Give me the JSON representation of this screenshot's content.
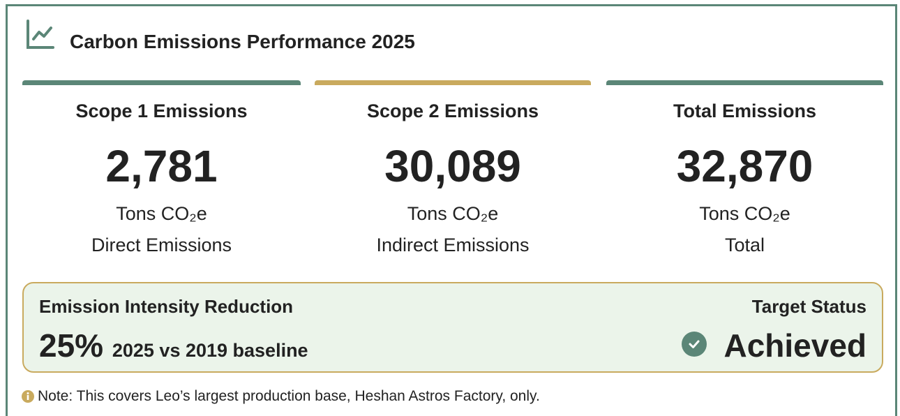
{
  "header": {
    "title": "Carbon Emissions Performance 2025"
  },
  "cards": [
    {
      "label": "Scope 1 Emissions",
      "value": "2,781",
      "unit": "Tons CO₂e",
      "description": "Direct Emissions",
      "color": "#5b8677"
    },
    {
      "label": "Scope 2 Emissions",
      "value": "30,089",
      "unit": "Tons CO₂e",
      "description": "Indirect Emissions",
      "color": "#c9aa5e"
    },
    {
      "label": "Total Emissions",
      "value": "32,870",
      "unit": "Tons CO₂e",
      "description": "Total",
      "color": "#5b8677"
    }
  ],
  "banner": {
    "title": "Emission Intensity Reduction",
    "value": "25%",
    "comparison": "2025 vs 2019 baseline",
    "status_label": "Target Status",
    "status": "Achieved"
  },
  "note": "Note: This covers Leo’s largest production base, Heshan Astros Factory, only."
}
